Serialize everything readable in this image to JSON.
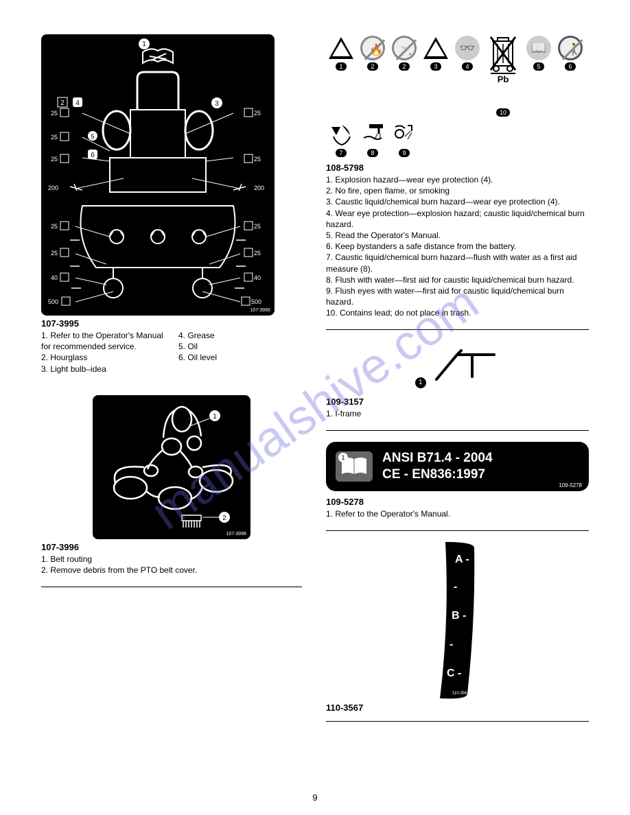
{
  "page_number": "9",
  "watermark_text": "manualshive.com",
  "left": {
    "maintenance_decal": {
      "part_number": "107-3995",
      "intervals": [
        "25",
        "25",
        "25",
        "25",
        "200",
        "200",
        "25",
        "25",
        "25",
        "25",
        "40",
        "40",
        "500",
        "500"
      ],
      "callouts": [
        "1",
        "2",
        "3",
        "4",
        "5",
        "6"
      ]
    },
    "maintenance_list": {
      "part_number": "107-3995",
      "items": [
        "1. Refer to the Operator's Manual for recommended service.",
        "2. Hourglass",
        "3. Light bulb–idea",
        "4. Grease",
        "5. Oil",
        "6. Oil level"
      ]
    },
    "belt_decal": {
      "part_number": "107-3996",
      "callouts": [
        "1",
        "2"
      ]
    },
    "belt_list": {
      "part_number": "107-3996",
      "items": [
        "1. Belt routing",
        "2. Remove debris from the PTO belt cover."
      ]
    }
  },
  "right": {
    "battery_safety": {
      "part_number": "108-5798",
      "icons": [
        {
          "num": "1",
          "type": "triangle",
          "glyph": "💥",
          "desc": "explosion"
        },
        {
          "num": "2",
          "type": "slash",
          "glyph": "🔥",
          "desc": "no-fire"
        },
        {
          "num": "2",
          "type": "slash",
          "glyph": "🚭",
          "desc": "no-smoke"
        },
        {
          "num": "3",
          "type": "triangle",
          "glyph": "⚠",
          "desc": "caustic"
        },
        {
          "num": "4",
          "type": "plain",
          "glyph": "👓",
          "desc": "eye-protection"
        },
        {
          "num": "5",
          "type": "plain",
          "glyph": "📖",
          "desc": "read-manual"
        },
        {
          "num": "6",
          "type": "slash",
          "glyph": "🚶",
          "desc": "keep-away"
        },
        {
          "num": "7",
          "type": "plain",
          "glyph": "✋",
          "desc": "acid-burn"
        },
        {
          "num": "8",
          "type": "plain",
          "glyph": "🧤",
          "desc": "flush-water"
        },
        {
          "num": "9",
          "type": "plain",
          "glyph": "🚰",
          "desc": "flush-eyes"
        },
        {
          "num": "10",
          "type": "bin",
          "glyph": "Pb",
          "desc": "no-trash"
        }
      ],
      "items": [
        "1. Explosion hazard—wear eye protection (4).",
        "2. No fire, open flame, or smoking",
        "3. Caustic liquid/chemical burn hazard—wear eye protection (4).",
        "4. Wear eye protection—explosion hazard; caustic liquid/chemical burn hazard.",
        "5. Read the Operator's Manual.",
        "6. Keep bystanders a safe distance from the battery.",
        "7. Caustic liquid/chemical burn hazard—flush with water as a first aid measure (8).",
        "8. Flush with water—first aid for caustic liquid/chemical burn hazard.",
        "9. Flush eyes with water—first aid for caustic liquid/chemical burn hazard.",
        "10. Contains lead; do not place in trash."
      ]
    },
    "iframe": {
      "part_number": "109-3157",
      "callout": "1",
      "items": [
        "1. I-frame"
      ]
    },
    "ansi": {
      "part_number": "109-5278",
      "callout": "1",
      "line1": "ANSI  B71.4 - 2004",
      "line2": "CE - EN836:1997",
      "items": [
        "1. Refer to the Operator's Manual."
      ]
    },
    "abc": {
      "part_number": "110-3567",
      "labels": [
        "A -",
        "-",
        "B -",
        "-",
        "C -"
      ]
    }
  }
}
